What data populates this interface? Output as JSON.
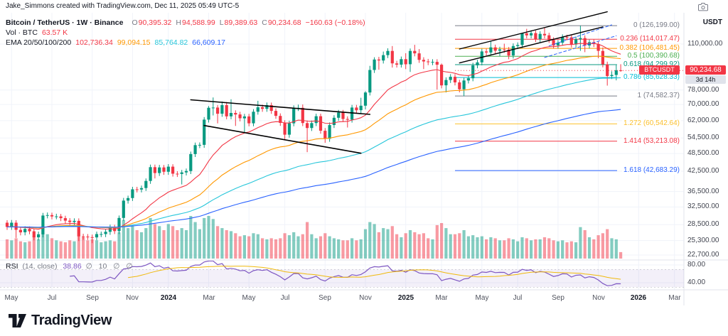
{
  "attribution": "Jake_Simmons created with TradingView.com, Dec 11, 2025 05:49 UTC-5",
  "colors": {
    "up": "#089981",
    "down": "#f23645",
    "vol_up": "rgba(8,153,129,0.5)",
    "vol_down": "rgba(242,54,69,0.5)",
    "grid": "#f0f3fa",
    "separator": "#e0e3eb",
    "text": "#131722",
    "muted": "#787b86",
    "rsi": "#7e57c2",
    "rsi_ma": "#f0b90b",
    "rsi_band": "rgba(126,87,194,0.09)",
    "ema": [
      "#f23645",
      "#ff9800",
      "#26c6da",
      "#2962ff"
    ]
  },
  "legend": {
    "title": "Bitcoin / TetherUS · 1W · Binance",
    "ohlc": {
      "o_label": "O",
      "o": "90,395.32",
      "h_label": "H",
      "h": "94,588.99",
      "l_label": "L",
      "l": "89,389.63",
      "c_label": "C",
      "c": "90,234.68",
      "change": "−160.63 (−0.18%)"
    },
    "vol_label": "Vol · BTC",
    "vol_value": "63.57 K",
    "ema_label": "EMA 20/50/100/200",
    "ema_values": [
      {
        "text": "102,736.34",
        "color": "#f23645"
      },
      {
        "text": "99,094.15",
        "color": "#ff9800"
      },
      {
        "text": "85,764.82",
        "color": "#26c6da"
      },
      {
        "text": "66,609.17",
        "color": "#2962ff"
      }
    ]
  },
  "rsi_legend": {
    "title": "RSI",
    "params": "(14, close)",
    "value": "38.86",
    "extra": [
      "∅",
      "10",
      "∅",
      "∅"
    ]
  },
  "symbol_tag": "BTCUSDT",
  "price_axis": {
    "currency": "USDT",
    "price_badge": "90,234.68",
    "countdown": "3d 14h",
    "ticks": [
      {
        "label": "110,000.00",
        "price": 110000
      },
      {
        "label": "78,000.00",
        "price": 78000
      },
      {
        "label": "70,000.00",
        "price": 70000
      },
      {
        "label": "62,000.00",
        "price": 62000
      },
      {
        "label": "54,500.00",
        "price": 54500
      },
      {
        "label": "48,500.00",
        "price": 48500
      },
      {
        "label": "42,500.00",
        "price": 42500
      },
      {
        "label": "36,500.00",
        "price": 36500
      },
      {
        "label": "32,500.00",
        "price": 32500
      },
      {
        "label": "28,500.00",
        "price": 28500
      },
      {
        "label": "25,300.00",
        "price": 25300
      },
      {
        "label": "22,700.00",
        "price": 22700
      }
    ]
  },
  "rsi_axis_ticks": [
    {
      "label": "80.00",
      "value": 80
    },
    {
      "label": "40.00",
      "value": 40
    }
  ],
  "time_axis": {
    "ticks": [
      {
        "label": "May",
        "i": 1
      },
      {
        "label": "Jul",
        "i": 10
      },
      {
        "label": "Sep",
        "i": 19
      },
      {
        "label": "Nov",
        "i": 28
      },
      {
        "label": "2024",
        "i": 36,
        "major": true
      },
      {
        "label": "Mar",
        "i": 45
      },
      {
        "label": "May",
        "i": 54
      },
      {
        "label": "Jul",
        "i": 62
      },
      {
        "label": "Sep",
        "i": 71
      },
      {
        "label": "Nov",
        "i": 80
      },
      {
        "label": "2025",
        "i": 89,
        "major": true
      },
      {
        "label": "Mar",
        "i": 97
      },
      {
        "label": "May",
        "i": 106
      },
      {
        "label": "Jul",
        "i": 114
      },
      {
        "label": "Sep",
        "i": 123
      },
      {
        "label": "Nov",
        "i": 132
      },
      {
        "label": "2026",
        "i": 141,
        "major": true
      },
      {
        "label": "Mar",
        "i": 149
      }
    ]
  },
  "fib_levels": [
    {
      "ratio": "0",
      "price": 126199.0,
      "label": "0 (126,199.00)",
      "color": "#787b86"
    },
    {
      "ratio": "0.236",
      "price": 114017.47,
      "label": "0.236 (114,017.47)",
      "color": "#f23645"
    },
    {
      "ratio": "0.382",
      "price": 106481.45,
      "label": "0.382 (106,481.45)",
      "color": "#ff9800"
    },
    {
      "ratio": "0.5",
      "price": 100390.68,
      "label": "0.5 (100,390.68)",
      "color": "#4caf50"
    },
    {
      "ratio": "0.618",
      "price": 94299.92,
      "label": "0.618 (94,299.92)",
      "color": "#089981"
    },
    {
      "ratio": "0.786",
      "price": 85628.33,
      "label": "0.786 (85,628.33)",
      "color": "#00bcd4"
    },
    {
      "ratio": "1",
      "price": 74582.37,
      "label": "1 (74,582.37)",
      "color": "#787b86"
    },
    {
      "ratio": "1.272",
      "price": 60542.64,
      "label": "1.272 (60,542.64)",
      "color": "#fbc02d"
    },
    {
      "ratio": "1.414",
      "price": 53213.08,
      "label": "1.414 (53,213.08)",
      "color": "#f23645"
    },
    {
      "ratio": "1.618",
      "price": 42683.29,
      "label": "1.618 (42,683.29)",
      "color": "#2962ff"
    }
  ],
  "footer": {
    "brand": "TradingView"
  },
  "chart_data": {
    "type": "candlestick",
    "title": "Bitcoin / TetherUS · 1W · Binance",
    "symbol": "BTCUSDT",
    "interval": "1W",
    "exchange": "Binance",
    "y_axis": {
      "scale": "log",
      "visible_price_range": [
        22000,
        145000
      ]
    },
    "x_axis": {
      "unit": "week",
      "bars": 138,
      "future_bars": 14
    },
    "first_open": 28900,
    "closes": [
      28000,
      28900,
      27400,
      26900,
      27600,
      27100,
      25900,
      26500,
      30500,
      30600,
      30300,
      30300,
      29900,
      29350,
      29050,
      29300,
      26100,
      26050,
      25950,
      25900,
      26550,
      26550,
      27000,
      27950,
      27150,
      29950,
      34100,
      34750,
      37100,
      37050,
      37450,
      39500,
      43800,
      41900,
      43700,
      42300,
      43950,
      41700,
      41600,
      42100,
      42550,
      48300,
      51650,
      51750,
      62500,
      68300,
      68400,
      65300,
      69650,
      64050,
      65700,
      64950,
      63100,
      64000,
      60800,
      66300,
      68550,
      67750,
      69650,
      66700,
      64250,
      61000,
      55850,
      60800,
      68150,
      68250,
      60900,
      58700,
      60900,
      64100,
      57500,
      54150,
      60000,
      63350,
      65900,
      62800,
      62450,
      68400,
      67050,
      69350,
      76550,
      90600,
      97950,
      97250,
      101250,
      104450,
      95150,
      94300,
      98250,
      94550,
      104450,
      102600,
      97700,
      96550,
      96100,
      96250,
      94250,
      80750,
      84050,
      86100,
      82550,
      78400,
      83750,
      85150,
      93800,
      95900,
      104100,
      103250,
      107300,
      104650,
      105700,
      105500,
      100950,
      108350,
      109200,
      119100,
      117350,
      119400,
      114200,
      118700,
      117400,
      113450,
      108850,
      111150,
      115950,
      115650,
      109650,
      114050,
      115050,
      108850,
      111550,
      110050,
      104500,
      94500,
      86600,
      87300,
      90395.32,
      90234.68
    ],
    "highs": [
      29450,
      29500,
      29450,
      27950,
      28150,
      28100,
      27600,
      27050,
      31100,
      31200,
      31150,
      30900,
      30850,
      30450,
      29900,
      29850,
      29850,
      26600,
      26550,
      26450,
      27050,
      27050,
      27500,
      28500,
      28450,
      30500,
      34800,
      35400,
      37800,
      37800,
      38150,
      40250,
      44650,
      44650,
      44550,
      44500,
      44800,
      44750,
      42500,
      42900,
      43350,
      49200,
      52650,
      52700,
      63700,
      69200,
      73750,
      69700,
      71550,
      71300,
      72800,
      67000,
      66250,
      65250,
      65250,
      67600,
      71950,
      69900,
      71050,
      71000,
      68000,
      65500,
      62200,
      62000,
      69500,
      69950,
      70000,
      62100,
      62100,
      65350,
      65350,
      58650,
      61200,
      64600,
      67200,
      67200,
      64050,
      69750,
      69750,
      73600,
      77300,
      93450,
      99650,
      99900,
      104000,
      106550,
      108350,
      97050,
      100200,
      102700,
      106400,
      109350,
      105900,
      99650,
      98450,
      98150,
      98150,
      95100,
      85750,
      87800,
      87800,
      84200,
      85400,
      86850,
      95650,
      97800,
      106200,
      106200,
      112000,
      109450,
      107800,
      110300,
      107600,
      110500,
      111350,
      119500,
      123250,
      121800,
      121750,
      121050,
      124500,
      119700,
      115700,
      113350,
      118250,
      117950,
      117950,
      116300,
      126199,
      117350,
      113750,
      113750,
      112250,
      107250,
      96400,
      89700,
      93950,
      94588.99
    ],
    "lows": [
      27400,
      27400,
      25800,
      26300,
      26300,
      26500,
      25350,
      25350,
      25900,
      29850,
      29650,
      29650,
      29250,
      28700,
      28400,
      28400,
      25200,
      25450,
      25400,
      24800,
      25350,
      25950,
      25950,
      26400,
      26550,
      26550,
      29300,
      33350,
      34000,
      36250,
      36250,
      36650,
      38650,
      40250,
      41000,
      41350,
      41350,
      40800,
      40700,
      38500,
      41150,
      41600,
      47250,
      50500,
      50600,
      61150,
      64500,
      60750,
      63850,
      62650,
      62650,
      59600,
      61700,
      56500,
      59450,
      59450,
      64850,
      66250,
      66250,
      65250,
      62850,
      59650,
      53500,
      54600,
      59450,
      66650,
      59550,
      49000,
      57400,
      59550,
      56250,
      52550,
      52950,
      58700,
      61950,
      61400,
      58900,
      61100,
      65550,
      65550,
      67450,
      74850,
      88600,
      90800,
      95100,
      99000,
      92250,
      92250,
      92250,
      91200,
      89250,
      100350,
      95550,
      91230,
      93950,
      93950,
      78250,
      78950,
      76600,
      82200,
      80700,
      76650,
      74508,
      81900,
      83250,
      91750,
      93800,
      100950,
      100950,
      102350,
      100450,
      103150,
      98200,
      98700,
      105950,
      106800,
      114750,
      114750,
      111650,
      111650,
      114800,
      110950,
      106450,
      106450,
      108700,
      113100,
      107250,
      107250,
      104550,
      103550,
      106450,
      107600,
      98900,
      92400,
      80600,
      84700,
      83850,
      89389.63
    ],
    "volumes_kbtc": [
      190,
      180,
      200,
      170,
      160,
      170,
      220,
      190,
      320,
      240,
      200,
      180,
      170,
      160,
      180,
      170,
      300,
      210,
      180,
      190,
      180,
      160,
      170,
      180,
      170,
      260,
      380,
      300,
      320,
      280,
      260,
      300,
      400,
      340,
      320,
      280,
      340,
      320,
      280,
      300,
      280,
      420,
      360,
      290,
      400,
      420,
      390,
      320,
      300,
      280,
      270,
      250,
      220,
      230,
      220,
      250,
      240,
      200,
      190,
      200,
      190,
      200,
      250,
      230,
      260,
      220,
      240,
      360,
      240,
      200,
      220,
      250,
      220,
      200,
      190,
      180,
      180,
      200,
      180,
      190,
      290,
      360,
      340,
      260,
      300,
      290,
      320,
      240,
      210,
      250,
      280,
      260,
      240,
      250,
      200,
      190,
      330,
      350,
      300,
      240,
      240,
      250,
      280,
      220,
      230,
      210,
      220,
      190,
      210,
      200,
      180,
      180,
      200,
      190,
      170,
      210,
      200,
      180,
      190,
      190,
      210,
      200,
      180,
      170,
      180,
      160,
      170,
      160,
      310,
      280,
      210,
      190,
      230,
      250,
      290,
      200,
      190,
      63.57
    ],
    "last": {
      "open": 90395.32,
      "high": 94588.99,
      "low": 89389.63,
      "close": 90234.68,
      "change": -160.63,
      "change_pct": -0.18
    },
    "emas": [
      {
        "period": 20,
        "value": 102736.34
      },
      {
        "period": 50,
        "value": 99094.15
      },
      {
        "period": 100,
        "value": 85764.82
      },
      {
        "period": 200,
        "value": 66609.17
      }
    ],
    "rsi": {
      "period": 14,
      "value": 38.86,
      "overbought": 70,
      "oversold": 30
    },
    "price_line": 90234.68,
    "fib_anchors": {
      "high": 126199.0,
      "low": 74582.37
    },
    "annotations": [
      {
        "type": "trendline",
        "i1": 41,
        "p1": 72500,
        "i2": 81,
        "p2": 65000,
        "color": "#000000",
        "width": 1.6
      },
      {
        "type": "trendline",
        "i1": 44,
        "p1": 59800,
        "i2": 79,
        "p2": 48600,
        "color": "#000000",
        "width": 1.6
      },
      {
        "type": "trendline",
        "i1": 101,
        "p1": 106000,
        "i2": 134,
        "p2": 140000,
        "color": "#000000",
        "width": 1.4
      },
      {
        "type": "trendline",
        "i1": 101,
        "p1": 95500,
        "i2": 133,
        "p2": 125000,
        "color": "#000000",
        "width": 1.4
      },
      {
        "type": "trendline",
        "i1": 121,
        "p1": 108500,
        "i2": 135,
        "p2": 127000,
        "color": "#2962ff",
        "width": 1,
        "dash": "4 3"
      },
      {
        "type": "trendline",
        "i1": 120,
        "p1": 99500,
        "i2": 136,
        "p2": 117000,
        "color": "#2962ff",
        "width": 1,
        "dash": "4 3"
      }
    ]
  }
}
